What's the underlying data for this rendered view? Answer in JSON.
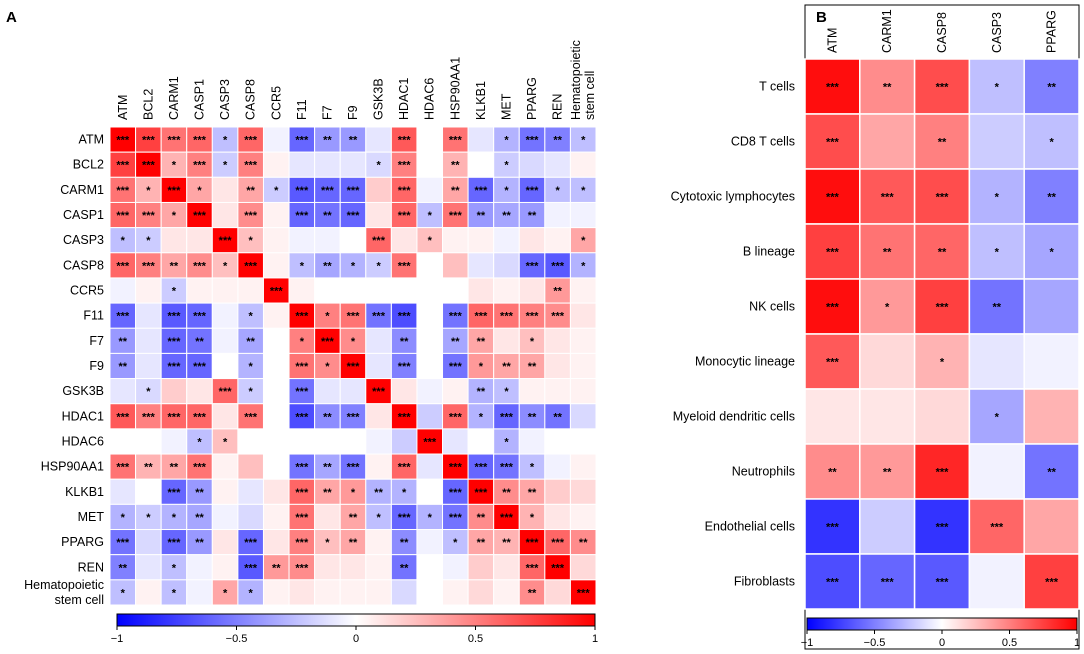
{
  "chart_data": [
    {
      "panel": "A",
      "type": "heatmap",
      "colorscale": {
        "low": "#0000ff",
        "mid": "#ffffff",
        "high": "#ff0000"
      },
      "range": [
        -1,
        1
      ],
      "rows": [
        "ATM",
        "BCL2",
        "CARM1",
        "CASP1",
        "CASP3",
        "CASP8",
        "CCR5",
        "F11",
        "F7",
        "F9",
        "GSK3B",
        "HDAC1",
        "HDAC6",
        "HSP90AA1",
        "KLKB1",
        "MET",
        "PPARG",
        "REN",
        "Hematopoietic stem cell"
      ],
      "row_label_lines": [
        [
          "ATM"
        ],
        [
          "BCL2"
        ],
        [
          "CARM1"
        ],
        [
          "CASP1"
        ],
        [
          "CASP3"
        ],
        [
          "CASP8"
        ],
        [
          "CCR5"
        ],
        [
          "F11"
        ],
        [
          "F7"
        ],
        [
          "F9"
        ],
        [
          "GSK3B"
        ],
        [
          "HDAC1"
        ],
        [
          "HDAC6"
        ],
        [
          "HSP90AA1"
        ],
        [
          "KLKB1"
        ],
        [
          "MET"
        ],
        [
          "PPARG"
        ],
        [
          "REN"
        ],
        [
          "Hematopoietic",
          "stem cell"
        ]
      ],
      "columns": [
        "ATM",
        "BCL2",
        "CARM1",
        "CASP1",
        "CASP3",
        "CASP8",
        "CCR5",
        "F11",
        "F7",
        "F9",
        "GSK3B",
        "HDAC1",
        "HDAC6",
        "HSP90AA1",
        "KLKB1",
        "MET",
        "PPARG",
        "REN",
        "Hematopoietic stem cell"
      ],
      "col_label_lines": [
        [
          "ATM"
        ],
        [
          "BCL2"
        ],
        [
          "CARM1"
        ],
        [
          "CASP1"
        ],
        [
          "CASP3"
        ],
        [
          "CASP8"
        ],
        [
          "CCR5"
        ],
        [
          "F11"
        ],
        [
          "F7"
        ],
        [
          "F9"
        ],
        [
          "GSK3B"
        ],
        [
          "HDAC1"
        ],
        [
          "HDAC6"
        ],
        [
          "HSP90AA1"
        ],
        [
          "KLKB1"
        ],
        [
          "MET"
        ],
        [
          "PPARG"
        ],
        [
          "REN"
        ],
        [
          "Hematopoietic",
          "stem cell"
        ]
      ],
      "values": [
        [
          1,
          0.75,
          0.55,
          0.6,
          -0.25,
          0.6,
          -0.05,
          -0.6,
          -0.4,
          -0.4,
          -0.1,
          0.65,
          0,
          0.55,
          -0.1,
          -0.3,
          -0.55,
          -0.5,
          -0.25
        ],
        [
          0.75,
          1,
          0.3,
          0.5,
          -0.2,
          0.5,
          0.05,
          -0.1,
          -0.1,
          -0.1,
          -0.15,
          0.5,
          0,
          0.3,
          0,
          -0.2,
          -0.15,
          -0.1,
          0.05
        ],
        [
          0.55,
          0.3,
          1,
          0.35,
          0.1,
          0.35,
          -0.2,
          -0.65,
          -0.6,
          -0.6,
          0.2,
          0.6,
          -0.05,
          0.35,
          -0.6,
          -0.3,
          -0.6,
          -0.25,
          -0.25
        ],
        [
          0.6,
          0.5,
          0.35,
          1,
          0.1,
          0.45,
          0.05,
          -0.6,
          -0.55,
          -0.6,
          0.1,
          0.6,
          -0.25,
          0.55,
          -0.4,
          -0.35,
          -0.4,
          -0.05,
          -0.05
        ],
        [
          -0.25,
          -0.2,
          0.1,
          0.1,
          1,
          0.25,
          0.05,
          -0.05,
          -0.05,
          0,
          0.6,
          0.1,
          0.25,
          0.05,
          0.05,
          -0.05,
          0.1,
          0.05,
          0.35
        ],
        [
          0.6,
          0.5,
          0.35,
          0.45,
          0.25,
          1,
          0.05,
          -0.25,
          -0.35,
          -0.3,
          -0.2,
          0.55,
          0,
          0.25,
          -0.1,
          -0.15,
          -0.6,
          -0.65,
          -0.3
        ],
        [
          -0.05,
          0.05,
          -0.2,
          0.05,
          0.05,
          0.05,
          1,
          0.05,
          0,
          0,
          0,
          0,
          0,
          0,
          0.1,
          0.05,
          0.1,
          0.4,
          0.05
        ],
        [
          -0.6,
          -0.1,
          -0.65,
          -0.6,
          -0.05,
          -0.25,
          0.05,
          1,
          0.5,
          0.55,
          -0.55,
          -0.7,
          0,
          -0.55,
          0.6,
          0.55,
          0.5,
          0.45,
          0.1
        ],
        [
          -0.4,
          -0.1,
          -0.6,
          -0.55,
          -0.05,
          -0.35,
          0,
          0.5,
          1,
          0.45,
          -0.1,
          -0.45,
          0,
          -0.35,
          0.35,
          0.1,
          0.25,
          0.1,
          0.05
        ],
        [
          -0.4,
          -0.1,
          -0.6,
          -0.6,
          0,
          -0.3,
          0,
          0.55,
          0.45,
          1,
          -0.1,
          -0.5,
          0,
          -0.55,
          0.4,
          0.35,
          0.35,
          0.1,
          0.05
        ],
        [
          -0.1,
          -0.15,
          0.2,
          0.1,
          0.6,
          -0.2,
          0,
          -0.55,
          -0.1,
          -0.1,
          1,
          0.1,
          -0.05,
          0.05,
          -0.3,
          -0.25,
          0.05,
          0.05,
          0.05
        ],
        [
          0.65,
          0.5,
          0.6,
          0.6,
          0.1,
          0.55,
          0,
          -0.7,
          -0.45,
          -0.5,
          0.1,
          1,
          -0.2,
          0.6,
          -0.3,
          -0.6,
          -0.45,
          -0.55,
          -0.15
        ],
        [
          0,
          0,
          -0.05,
          -0.25,
          0.25,
          0,
          0,
          0,
          0,
          0,
          -0.05,
          -0.2,
          1,
          -0.1,
          0,
          -0.3,
          -0.05,
          0,
          0
        ],
        [
          0.55,
          0.3,
          0.35,
          0.55,
          0.05,
          0.25,
          0,
          -0.55,
          -0.35,
          -0.55,
          0.05,
          0.6,
          -0.1,
          1,
          -0.6,
          -0.55,
          -0.25,
          -0.05,
          0.05
        ],
        [
          -0.1,
          0,
          -0.6,
          -0.4,
          0.05,
          -0.1,
          0.1,
          0.6,
          0.35,
          0.4,
          -0.3,
          -0.3,
          0,
          -0.6,
          1,
          0.45,
          0.35,
          0.2,
          0.15
        ],
        [
          -0.3,
          -0.2,
          -0.3,
          -0.35,
          -0.05,
          -0.15,
          0.05,
          0.55,
          0.1,
          0.35,
          -0.25,
          -0.6,
          -0.3,
          -0.55,
          0.45,
          1,
          0.3,
          0.1,
          0.05
        ],
        [
          -0.55,
          -0.15,
          -0.6,
          -0.4,
          0.1,
          -0.6,
          0.1,
          0.5,
          0.25,
          0.35,
          0.05,
          -0.45,
          -0.05,
          -0.25,
          0.35,
          0.3,
          1,
          0.6,
          0.45
        ],
        [
          -0.5,
          -0.1,
          -0.25,
          -0.05,
          0.05,
          -0.65,
          0.4,
          0.45,
          0.1,
          0.1,
          0.05,
          -0.55,
          0,
          -0.05,
          0.2,
          0.1,
          0.6,
          1,
          0.15
        ],
        [
          -0.25,
          0.05,
          -0.25,
          -0.05,
          0.35,
          -0.3,
          0.05,
          0.1,
          0.05,
          0.05,
          0.05,
          -0.15,
          0,
          0.05,
          0.15,
          0.05,
          0.45,
          0.15,
          1
        ]
      ],
      "stars": [
        [
          "***",
          "***",
          "***",
          "***",
          "*",
          "***",
          "",
          "***",
          "**",
          "**",
          "",
          "***",
          "",
          "***",
          "",
          "*",
          "***",
          "**",
          "*"
        ],
        [
          "***",
          "***",
          "*",
          "***",
          "*",
          "***",
          "",
          "",
          "",
          "",
          "*",
          "***",
          "",
          "**",
          "",
          "*",
          "",
          "",
          ""
        ],
        [
          "***",
          "*",
          "***",
          "*",
          "",
          "**",
          "*",
          "***",
          "***",
          "***",
          "",
          "***",
          "",
          "**",
          "***",
          "*",
          "***",
          "*",
          "*"
        ],
        [
          "***",
          "***",
          "*",
          "***",
          "",
          "***",
          "",
          "***",
          "**",
          "***",
          "",
          "***",
          "*",
          "***",
          "**",
          "**",
          "**",
          "",
          ""
        ],
        [
          "*",
          "*",
          "",
          "",
          "***",
          "*",
          "",
          "",
          "",
          "",
          "***",
          "",
          "*",
          "",
          "",
          "",
          "",
          "",
          "*"
        ],
        [
          "***",
          "***",
          "**",
          "***",
          "*",
          "***",
          "",
          "*",
          "**",
          "*",
          "*",
          "***",
          "",
          "",
          "",
          "",
          "***",
          "***",
          "*"
        ],
        [
          "",
          "",
          "*",
          "",
          "",
          "",
          "***",
          "",
          "",
          "",
          "",
          "",
          "",
          "",
          "",
          "",
          "",
          "**",
          ""
        ],
        [
          "***",
          "",
          "***",
          "***",
          "",
          "*",
          "",
          "***",
          "*",
          "***",
          "***",
          "***",
          "",
          "***",
          "***",
          "***",
          "***",
          "***",
          ""
        ],
        [
          "**",
          "",
          "***",
          "**",
          "",
          "**",
          "",
          "*",
          "***",
          "*",
          "",
          "**",
          "",
          "**",
          "**",
          "",
          "*",
          "",
          ""
        ],
        [
          "**",
          "",
          "***",
          "***",
          "",
          "*",
          "",
          "***",
          "*",
          "***",
          "",
          "***",
          "",
          "***",
          "*",
          "**",
          "**",
          "",
          ""
        ],
        [
          "",
          "*",
          "",
          "",
          "***",
          "*",
          "",
          "***",
          "",
          "",
          "***",
          "",
          "",
          "",
          "**",
          "*",
          "",
          "",
          ""
        ],
        [
          "***",
          "***",
          "***",
          "***",
          "",
          "***",
          "",
          "***",
          "**",
          "***",
          "",
          "***",
          "",
          "***",
          "*",
          "***",
          "**",
          "**",
          ""
        ],
        [
          "",
          "",
          "",
          "*",
          "*",
          "",
          "",
          "",
          "",
          "",
          "",
          "",
          "***",
          "",
          "",
          "*",
          "",
          "",
          ""
        ],
        [
          "***",
          "**",
          "**",
          "***",
          "",
          "",
          "",
          "***",
          "**",
          "***",
          "",
          "***",
          "",
          "***",
          "***",
          "***",
          "*",
          "",
          ""
        ],
        [
          "",
          "",
          "***",
          "**",
          "",
          "",
          "",
          "***",
          "**",
          "*",
          "**",
          "*",
          "",
          "***",
          "***",
          "**",
          "**",
          "",
          ""
        ],
        [
          "*",
          "*",
          "*",
          "**",
          "",
          "",
          "",
          "***",
          "",
          "**",
          "*",
          "***",
          "*",
          "***",
          "**",
          "***",
          "*",
          "",
          ""
        ],
        [
          "***",
          "",
          "***",
          "**",
          "",
          "***",
          "",
          "***",
          "*",
          "**",
          "",
          "**",
          "",
          "*",
          "**",
          "**",
          "***",
          "***",
          "**"
        ],
        [
          "**",
          "",
          "*",
          "",
          "",
          "***",
          "**",
          "***",
          "",
          "",
          "",
          "**",
          "",
          "",
          "",
          "",
          "***",
          "***",
          ""
        ],
        [
          "*",
          "",
          "*",
          "",
          "*",
          "*",
          "",
          "",
          "",
          "",
          "",
          "",
          "",
          "",
          "",
          "",
          "**",
          "",
          "***"
        ]
      ],
      "colorbar_ticks": [
        "−1",
        "−0.5",
        "0",
        "0.5",
        "1"
      ]
    },
    {
      "panel": "B",
      "type": "heatmap",
      "colorscale": {
        "low": "#0000ff",
        "mid": "#ffffff",
        "high": "#ff0000"
      },
      "range": [
        -1,
        1
      ],
      "rows": [
        "T cells",
        "CD8 T cells",
        "Cytotoxic lymphocytes",
        "B lineage",
        "NK cells",
        "Monocytic lineage",
        "Myeloid dendritic cells",
        "Neutrophils",
        "Endothelial cells",
        "Fibroblasts"
      ],
      "columns": [
        "ATM",
        "CARM1",
        "CASP8",
        "CASP3",
        "PPARG"
      ],
      "values": [
        [
          0.95,
          0.45,
          0.7,
          -0.25,
          -0.5
        ],
        [
          0.7,
          0.35,
          0.5,
          -0.2,
          -0.25
        ],
        [
          0.95,
          0.65,
          0.7,
          -0.3,
          -0.5
        ],
        [
          0.75,
          0.55,
          0.6,
          -0.25,
          -0.35
        ],
        [
          0.95,
          0.4,
          0.75,
          -0.55,
          -0.35
        ],
        [
          0.65,
          0.15,
          0.3,
          -0.1,
          -0.05
        ],
        [
          0.1,
          0.1,
          0.15,
          -0.35,
          0.3
        ],
        [
          0.45,
          0.4,
          0.85,
          -0.05,
          -0.55
        ],
        [
          -0.8,
          -0.2,
          -0.8,
          0.6,
          0.35
        ],
        [
          -0.7,
          -0.6,
          -0.65,
          -0.05,
          0.75
        ]
      ],
      "stars": [
        [
          "***",
          "**",
          "***",
          "*",
          "**"
        ],
        [
          "***",
          "",
          "**",
          "",
          "*"
        ],
        [
          "***",
          "***",
          "***",
          "*",
          "**"
        ],
        [
          "***",
          "**",
          "**",
          "*",
          "*"
        ],
        [
          "***",
          "*",
          "***",
          "**",
          ""
        ],
        [
          "***",
          "",
          "*",
          "",
          ""
        ],
        [
          "",
          "",
          "",
          "*",
          ""
        ],
        [
          "**",
          "**",
          "***",
          "",
          "**"
        ],
        [
          "***",
          "",
          "***",
          "***",
          ""
        ],
        [
          "***",
          "***",
          "***",
          "",
          "***"
        ]
      ],
      "colorbar_ticks": [
        "−1",
        "−0.5",
        "0",
        "0.5",
        "1"
      ]
    }
  ],
  "panel_labels": {
    "a": "A",
    "b": "B"
  }
}
